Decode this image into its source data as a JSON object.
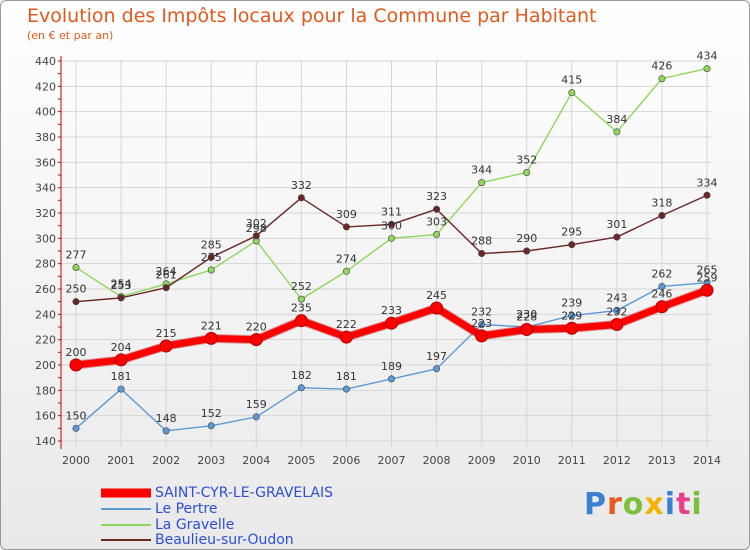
{
  "header": {
    "title": "Evolution des Impôts locaux pour la Commune par Habitant",
    "subtitle": "(en € et par an)"
  },
  "logo": {
    "text": "Proxiti",
    "colors": [
      "#3a7fd0",
      "#e8591f",
      "#7cbf3a",
      "#f2b400",
      "#3a7fd0",
      "#e83c8d",
      "#7cbf3a"
    ]
  },
  "chart_data": {
    "type": "line",
    "title": "Evolution des Impôts locaux pour la Commune par Habitant",
    "ylabel": "(en € et par an)",
    "xlabel": "",
    "x": [
      2000,
      2001,
      2002,
      2003,
      2004,
      2005,
      2006,
      2007,
      2008,
      2009,
      2010,
      2011,
      2012,
      2013,
      2014
    ],
    "ylim": [
      140,
      440
    ],
    "yticks": [
      140,
      160,
      180,
      200,
      220,
      240,
      260,
      280,
      300,
      320,
      340,
      360,
      380,
      400,
      420,
      440
    ],
    "grid": true,
    "legend": "bottom-left",
    "series": [
      {
        "name": "SAINT-CYR-LE-GRAVELAIS",
        "color": "#ff0000",
        "values": [
          200,
          204,
          215,
          221,
          220,
          235,
          222,
          233,
          245,
          223,
          228,
          229,
          232,
          246,
          259
        ]
      },
      {
        "name": "Le Pertre",
        "color": "#5b9bd5",
        "values": [
          150,
          181,
          148,
          152,
          159,
          182,
          181,
          189,
          197,
          232,
          230,
          239,
          243,
          262,
          265
        ]
      },
      {
        "name": "La Gravelle",
        "color": "#8fd65a",
        "values": [
          277,
          254,
          264,
          275,
          298,
          252,
          274,
          300,
          303,
          344,
          352,
          415,
          384,
          426,
          434
        ]
      },
      {
        "name": "Beaulieu-sur-Oudon",
        "color": "#6b2626",
        "values": [
          250,
          253,
          261,
          285,
          302,
          332,
          309,
          311,
          323,
          288,
          290,
          295,
          301,
          318,
          334
        ]
      }
    ]
  }
}
